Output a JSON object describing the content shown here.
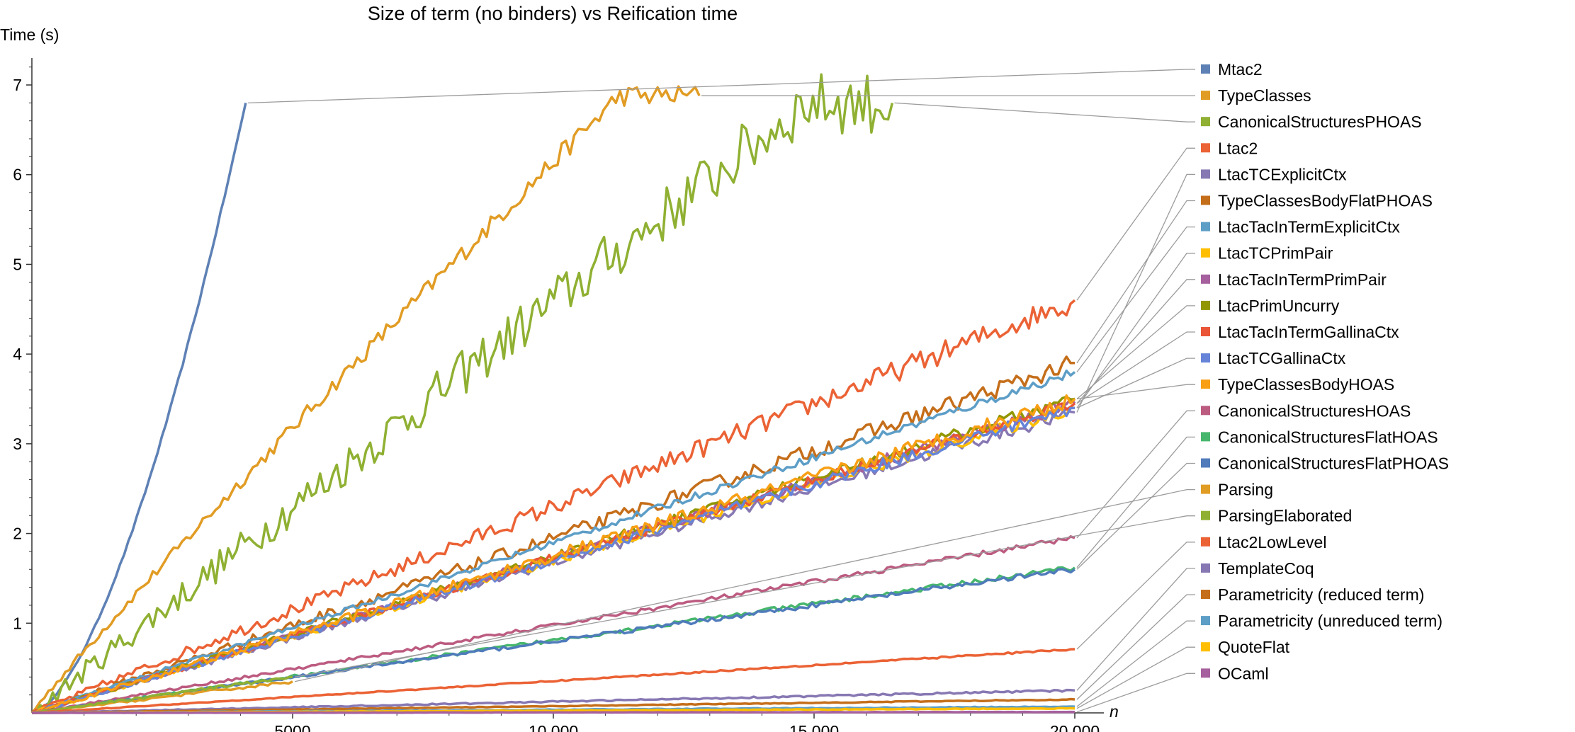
{
  "chart_data": {
    "type": "line",
    "title": "Size of term (no binders) vs Reification time",
    "xlabel": "n",
    "ylabel": "Time (s)",
    "xlim": [
      0,
      20000
    ],
    "ylim": [
      0,
      7.3
    ],
    "xticks": [
      5000,
      10000,
      15000,
      20000
    ],
    "xtick_labels": [
      "5000",
      "10 000",
      "15 000",
      "20 000"
    ],
    "yticks": [
      1,
      2,
      3,
      4,
      5,
      6,
      7
    ],
    "ytick_labels": [
      "1",
      "2",
      "3",
      "4",
      "5",
      "6",
      "7"
    ],
    "grid": false,
    "legend_position": "right",
    "series": [
      {
        "name": "Mtac2",
        "color": "#5e81b5",
        "x_end": 4100,
        "end_y": 6.8,
        "shape": "power",
        "exp": 1.6,
        "noise": 0.02
      },
      {
        "name": "TypeClasses",
        "color": "#e19c24",
        "x_end": 12800,
        "end_y": 6.88,
        "shape": "sat",
        "noise": 0.12
      },
      {
        "name": "CanonicalStructuresPHOAS",
        "color": "#8fb032",
        "x_end": 16500,
        "end_y": 6.8,
        "shape": "sat2",
        "noise": 0.35
      },
      {
        "name": "Ltac2",
        "color": "#eb6235",
        "x_end": 20000,
        "end_y": 4.6,
        "shape": "linear",
        "noise": 0.13
      },
      {
        "name": "LtacTCExplicitCtx",
        "color": "#8778b3",
        "x_end": 20000,
        "end_y": 3.35,
        "shape": "linear",
        "noise": 0.07
      },
      {
        "name": "TypeClassesBodyFlatPHOAS",
        "color": "#c56e1a",
        "x_end": 20000,
        "end_y": 3.9,
        "shape": "linear",
        "noise": 0.1
      },
      {
        "name": "LtacTacInTermExplicitCtx",
        "color": "#5d9ec7",
        "x_end": 20000,
        "end_y": 3.8,
        "shape": "linear",
        "noise": 0.05
      },
      {
        "name": "LtacTCPrimPair",
        "color": "#ffbf00",
        "x_end": 20000,
        "end_y": 3.4,
        "shape": "linear",
        "noise": 0.07
      },
      {
        "name": "LtacTacInTermPrimPair",
        "color": "#a5609d",
        "x_end": 20000,
        "end_y": 3.45,
        "shape": "linear",
        "noise": 0.07
      },
      {
        "name": "LtacPrimUncurry",
        "color": "#929600",
        "x_end": 20000,
        "end_y": 3.5,
        "shape": "linear",
        "noise": 0.07
      },
      {
        "name": "LtacTacInTermGallinaCtx",
        "color": "#e95536",
        "x_end": 20000,
        "end_y": 3.45,
        "shape": "linear",
        "noise": 0.07
      },
      {
        "name": "LtacTCGallinaCtx",
        "color": "#6685d9",
        "x_end": 20000,
        "end_y": 3.4,
        "shape": "linear",
        "noise": 0.07
      },
      {
        "name": "TypeClassesBodyHOAS",
        "color": "#f89f13",
        "x_end": 20000,
        "end_y": 3.5,
        "shape": "linear",
        "noise": 0.09
      },
      {
        "name": "CanonicalStructuresHOAS",
        "color": "#bc5b80",
        "x_end": 20000,
        "end_y": 1.95,
        "shape": "linear",
        "noise": 0.03
      },
      {
        "name": "CanonicalStructuresFlatHOAS",
        "color": "#47b66d",
        "x_end": 20000,
        "end_y": 1.62,
        "shape": "linear",
        "noise": 0.03
      },
      {
        "name": "CanonicalStructuresFlatPHOAS",
        "color": "#4f7bbb",
        "x_end": 20000,
        "end_y": 1.6,
        "shape": "linear",
        "noise": 0.03
      },
      {
        "name": "Parsing",
        "color": "#e19c24",
        "x_end": 5000,
        "end_y": 0.35,
        "shape": "linear",
        "noise": 0.02
      },
      {
        "name": "ParsingElaborated",
        "color": "#8fb032",
        "x_end": 5000,
        "end_y": 0.4,
        "shape": "linear",
        "noise": 0.02
      },
      {
        "name": "Ltac2LowLevel",
        "color": "#eb6235",
        "x_end": 20000,
        "end_y": 0.71,
        "shape": "linear",
        "noise": 0.01
      },
      {
        "name": "TemplateCoq",
        "color": "#8778b3",
        "x_end": 20000,
        "end_y": 0.25,
        "shape": "linear",
        "noise": 0.01
      },
      {
        "name": "Parametricity (reduced term)",
        "color": "#c56e1a",
        "x_end": 20000,
        "end_y": 0.15,
        "shape": "linear",
        "noise": 0.005
      },
      {
        "name": "Parametricity (unreduced term)",
        "color": "#5d9ec7",
        "x_end": 20000,
        "end_y": 0.07,
        "shape": "linear",
        "noise": 0.005
      },
      {
        "name": "QuoteFlat",
        "color": "#ffbf00",
        "x_end": 20000,
        "end_y": 0.05,
        "shape": "linear",
        "noise": 0.004
      },
      {
        "name": "OCaml",
        "color": "#a5609d",
        "x_end": 20000,
        "end_y": 0.01,
        "shape": "linear",
        "noise": 0.002
      }
    ]
  }
}
